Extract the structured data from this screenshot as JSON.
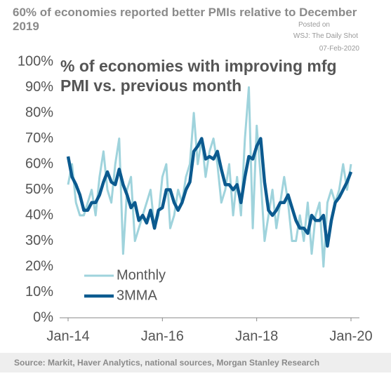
{
  "chart_data": {
    "type": "line",
    "title": "60% of economies reported better PMIs relative to December 2019",
    "subtitle": "% of economies with improving mfg PMI vs. previous month",
    "watermark": [
      "Posted on",
      "WSJ: The Daily Shot",
      "07-Feb-2020"
    ],
    "source": "Source: Markit, Haver Analytics, national sources, Morgan Stanley Research",
    "categories": [
      "Jan-14",
      null,
      null,
      null,
      null,
      null,
      null,
      null,
      null,
      null,
      null,
      null,
      null,
      null,
      null,
      null,
      null,
      null,
      null,
      null,
      null,
      null,
      null,
      null,
      "Jan-16",
      null,
      null,
      null,
      null,
      null,
      null,
      null,
      null,
      null,
      null,
      null,
      null,
      null,
      null,
      null,
      null,
      null,
      null,
      null,
      null,
      null,
      null,
      null,
      "Jan-18",
      null,
      null,
      null,
      null,
      null,
      null,
      null,
      null,
      null,
      null,
      null,
      null,
      null,
      null,
      null,
      null,
      null,
      null,
      null,
      null,
      null,
      null,
      null,
      "Jan-20"
    ],
    "series": [
      {
        "name": "Monthly",
        "color": "#9fd3dc",
        "values": [
          52,
          60,
          45,
          40,
          40,
          45,
          50,
          40,
          55,
          65,
          50,
          45,
          60,
          70,
          25,
          50,
          55,
          30,
          35,
          40,
          45,
          50,
          35,
          40,
          55,
          60,
          35,
          40,
          50,
          45,
          55,
          60,
          80,
          60,
          70,
          55,
          65,
          70,
          60,
          45,
          50,
          60,
          40,
          55,
          40,
          70,
          90,
          35,
          75,
          55,
          30,
          40,
          50,
          35,
          45,
          55,
          45,
          30,
          30,
          40,
          30,
          45,
          25,
          40,
          45,
          20,
          45,
          50,
          45,
          50,
          60,
          50,
          60
        ]
      },
      {
        "name": "3MMA",
        "color": "#0b5a8f",
        "values": [
          63,
          55,
          52,
          48,
          42,
          42,
          45,
          45,
          48,
          53,
          57,
          53,
          52,
          58,
          52,
          48,
          43,
          45,
          38,
          40,
          37,
          42,
          35,
          42,
          43,
          50,
          50,
          45,
          42,
          45,
          50,
          53,
          65,
          67,
          70,
          62,
          63,
          62,
          65,
          58,
          52,
          52,
          50,
          52,
          45,
          55,
          63,
          62,
          67,
          70,
          53,
          42,
          40,
          42,
          45,
          45,
          48,
          43,
          38,
          35,
          35,
          33,
          40,
          38,
          38,
          40,
          28,
          38,
          45,
          47,
          50,
          53,
          57
        ]
      }
    ],
    "ylim": [
      0,
      100
    ],
    "yticks": [
      {
        "value": 0,
        "label": "0%"
      },
      {
        "value": 10,
        "label": "10%"
      },
      {
        "value": 20,
        "label": "20%"
      },
      {
        "value": 30,
        "label": "30%"
      },
      {
        "value": 40,
        "label": "40%"
      },
      {
        "value": 50,
        "label": "50%"
      },
      {
        "value": 60,
        "label": "60%"
      },
      {
        "value": 70,
        "label": "70%"
      },
      {
        "value": 80,
        "label": "80%"
      },
      {
        "value": 90,
        "label": "90%"
      },
      {
        "value": 100,
        "label": "100%"
      }
    ],
    "legend": "lower left",
    "grid": false
  }
}
